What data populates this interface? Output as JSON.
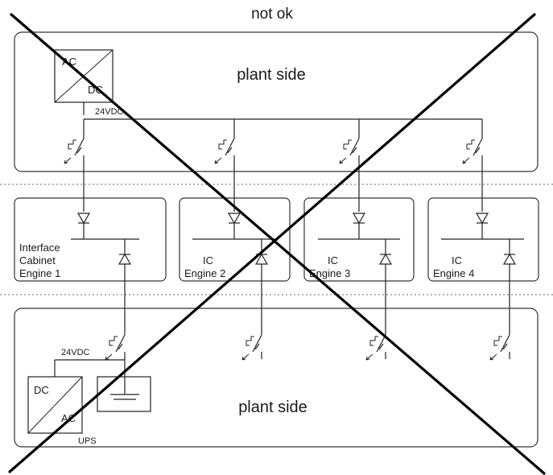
{
  "title": "not ok",
  "top_section": {
    "label": "plant side",
    "converter": {
      "input": "AC",
      "output": "DC"
    },
    "voltage": "24VDC"
  },
  "bottom_section": {
    "label": "plant side",
    "ups": {
      "input": "DC",
      "output": "AC",
      "label": "UPS"
    },
    "voltage": "24VDC"
  },
  "cabinets": [
    {
      "label_lines": [
        "Interface",
        "Cabinet",
        "Engine 1"
      ]
    },
    {
      "label_lines": [
        "IC",
        "Engine 2"
      ]
    },
    {
      "label_lines": [
        "IC",
        "Engine 3"
      ]
    },
    {
      "label_lines": [
        "IC",
        "Engine 4"
      ]
    }
  ],
  "icons": {
    "switch": "pushbutton-switch-icon",
    "diode": "diode-icon",
    "battery": "battery-icon",
    "converter": "converter-icon",
    "cross": "cross-out-icon"
  }
}
